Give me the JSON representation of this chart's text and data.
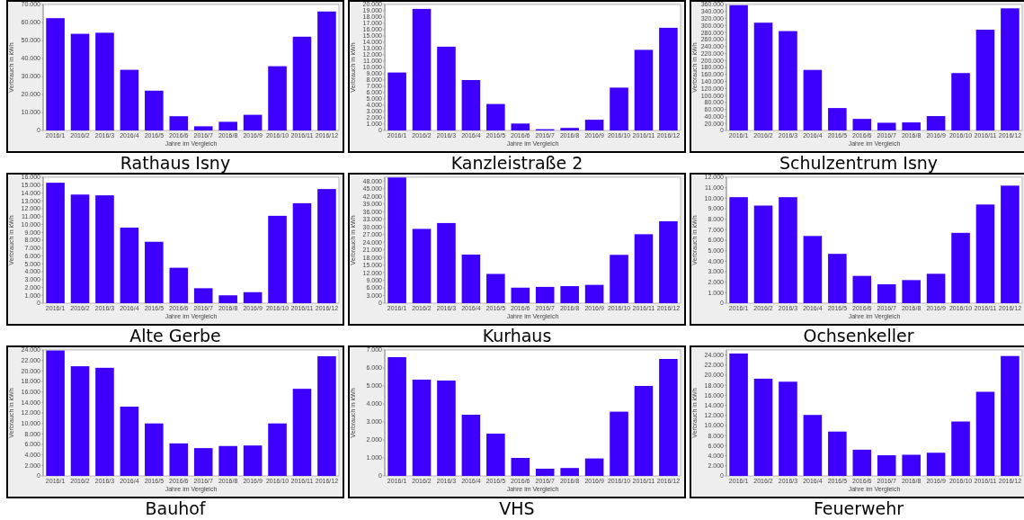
{
  "chart_data": [
    {
      "type": "bar",
      "title": "Rathaus Isny",
      "xlabel": "Jahre im Vergleich",
      "ylabel": "Verbrauch in kWh",
      "color": "#3d00ff",
      "categories": [
        "2016/1",
        "2016/2",
        "2016/3",
        "2016/4",
        "2016/5",
        "2016/6",
        "2016/7",
        "2016/8",
        "2016/9",
        "2016/10",
        "2016/11",
        "2016/12"
      ],
      "values": [
        62400,
        53700,
        54300,
        33700,
        22100,
        7900,
        2300,
        4800,
        8700,
        35700,
        52100,
        66100
      ],
      "ylim": [
        0,
        70000
      ],
      "yticks": [
        {
          "value": 0,
          "label": "0"
        },
        {
          "value": 10000,
          "label": "10.000"
        },
        {
          "value": 20000,
          "label": "20.000"
        },
        {
          "value": 30000,
          "label": "30.000"
        },
        {
          "value": 40000,
          "label": "40.000"
        },
        {
          "value": 50000,
          "label": "50.000"
        },
        {
          "value": 60000,
          "label": "60.000"
        },
        {
          "value": 70000,
          "label": "70.000"
        }
      ]
    },
    {
      "type": "bar",
      "title": "Kanzleistraße 2",
      "xlabel": "Jahre im Vergleich",
      "ylabel": "Verbrauch in kWh",
      "color": "#3d00ff",
      "categories": [
        "2016/1",
        "2016/2",
        "2016/3",
        "2016/4",
        "2016/5",
        "2016/6",
        "2016/7",
        "2016/8",
        "2016/9",
        "2016/10",
        "2016/11",
        "2016/12"
      ],
      "values": [
        9200,
        19300,
        13300,
        8000,
        4200,
        1100,
        200,
        400,
        1700,
        6800,
        12800,
        16300
      ],
      "ylim": [
        0,
        20000
      ],
      "yticks": [
        {
          "value": 0,
          "label": "0"
        },
        {
          "value": 1000,
          "label": "1.000"
        },
        {
          "value": 2000,
          "label": "2.000"
        },
        {
          "value": 3000,
          "label": "3.000"
        },
        {
          "value": 4000,
          "label": "4.000"
        },
        {
          "value": 5000,
          "label": "5.000"
        },
        {
          "value": 6000,
          "label": "6.000"
        },
        {
          "value": 7000,
          "label": "7.000"
        },
        {
          "value": 8000,
          "label": "8.000"
        },
        {
          "value": 9000,
          "label": "9.000"
        },
        {
          "value": 10000,
          "label": "10.000"
        },
        {
          "value": 11000,
          "label": "11.000"
        },
        {
          "value": 12000,
          "label": "12.000"
        },
        {
          "value": 13000,
          "label": "13.000"
        },
        {
          "value": 14000,
          "label": "14.000"
        },
        {
          "value": 15000,
          "label": "15.000"
        },
        {
          "value": 16000,
          "label": "16.000"
        },
        {
          "value": 17000,
          "label": "17.000"
        },
        {
          "value": 18000,
          "label": "18.000"
        },
        {
          "value": 19000,
          "label": "19.000"
        },
        {
          "value": 20000,
          "label": "20.000"
        }
      ]
    },
    {
      "type": "bar",
      "title": "Schulzentrum Isny",
      "xlabel": "Jahre im Vergleich",
      "ylabel": "Verbrauch in kWh",
      "color": "#3d00ff",
      "categories": [
        "2016/1",
        "2016/2",
        "2016/3",
        "2016/4",
        "2016/5",
        "2016/6",
        "2016/7",
        "2016/8",
        "2016/9",
        "2016/10",
        "2016/11",
        "2016/12"
      ],
      "values": [
        358000,
        308000,
        284000,
        173000,
        64000,
        33000,
        22000,
        23000,
        41000,
        164000,
        288000,
        349000
      ],
      "ylim": [
        0,
        360000
      ],
      "yticks": [
        {
          "value": 0,
          "label": "0"
        },
        {
          "value": 20000,
          "label": "20.000"
        },
        {
          "value": 40000,
          "label": "40.000"
        },
        {
          "value": 60000,
          "label": "60.000"
        },
        {
          "value": 80000,
          "label": "80.000"
        },
        {
          "value": 100000,
          "label": "100.000"
        },
        {
          "value": 120000,
          "label": "120.000"
        },
        {
          "value": 140000,
          "label": "140.000"
        },
        {
          "value": 160000,
          "label": "160.000"
        },
        {
          "value": 180000,
          "label": "180.000"
        },
        {
          "value": 200000,
          "label": "200.000"
        },
        {
          "value": 220000,
          "label": "220.000"
        },
        {
          "value": 240000,
          "label": "240.000"
        },
        {
          "value": 260000,
          "label": "260.000"
        },
        {
          "value": 280000,
          "label": "280.000"
        },
        {
          "value": 300000,
          "label": "300.000"
        },
        {
          "value": 320000,
          "label": "320.000"
        },
        {
          "value": 340000,
          "label": "340.000"
        },
        {
          "value": 360000,
          "label": "360.000"
        }
      ]
    },
    {
      "type": "bar",
      "title": "Alte Gerbe",
      "xlabel": "Jahre im Vergleich",
      "ylabel": "Verbrauch in kWh",
      "color": "#3d00ff",
      "categories": [
        "2016/1",
        "2016/2",
        "2016/3",
        "2016/4",
        "2016/5",
        "2016/6",
        "2016/7",
        "2016/8",
        "2016/9",
        "2016/10",
        "2016/11",
        "2016/12"
      ],
      "values": [
        15300,
        13800,
        13700,
        9600,
        7800,
        4500,
        1900,
        1000,
        1400,
        11100,
        12700,
        14500
      ],
      "ylim": [
        0,
        16000
      ],
      "yticks": [
        {
          "value": 0,
          "label": "0"
        },
        {
          "value": 1000,
          "label": "1.000"
        },
        {
          "value": 2000,
          "label": "2.000"
        },
        {
          "value": 3000,
          "label": "3.000"
        },
        {
          "value": 4000,
          "label": "4.000"
        },
        {
          "value": 5000,
          "label": "5.000"
        },
        {
          "value": 6000,
          "label": "6.000"
        },
        {
          "value": 7000,
          "label": "7.000"
        },
        {
          "value": 8000,
          "label": "8.000"
        },
        {
          "value": 9000,
          "label": "9.000"
        },
        {
          "value": 10000,
          "label": "10.000"
        },
        {
          "value": 11000,
          "label": "11.000"
        },
        {
          "value": 12000,
          "label": "12.000"
        },
        {
          "value": 13000,
          "label": "13.000"
        },
        {
          "value": 14000,
          "label": "14.000"
        },
        {
          "value": 15000,
          "label": "15.000"
        },
        {
          "value": 16000,
          "label": "16.000"
        }
      ]
    },
    {
      "type": "bar",
      "title": "Kurhaus",
      "xlabel": "Jahre im Vergleich",
      "ylabel": "Verbrauch in kWh",
      "color": "#3d00ff",
      "categories": [
        "2016/1",
        "2016/2",
        "2016/3",
        "2016/4",
        "2016/5",
        "2016/6",
        "2016/7",
        "2016/8",
        "2016/9",
        "2016/10",
        "2016/11",
        "2016/12"
      ],
      "values": [
        49400,
        29200,
        31500,
        19100,
        11500,
        6100,
        6400,
        6700,
        7200,
        19000,
        27100,
        32200
      ],
      "ylim": [
        0,
        49500
      ],
      "yticks": [
        {
          "value": 0,
          "label": "0"
        },
        {
          "value": 3000,
          "label": "3.000"
        },
        {
          "value": 6000,
          "label": "6.000"
        },
        {
          "value": 9000,
          "label": "9.000"
        },
        {
          "value": 12000,
          "label": "12.000"
        },
        {
          "value": 15000,
          "label": "15.000"
        },
        {
          "value": 18000,
          "label": "18.000"
        },
        {
          "value": 21000,
          "label": "21.000"
        },
        {
          "value": 24000,
          "label": "24.000"
        },
        {
          "value": 27000,
          "label": "27.000"
        },
        {
          "value": 30000,
          "label": "30.000"
        },
        {
          "value": 33000,
          "label": "33.000"
        },
        {
          "value": 36000,
          "label": "36.000"
        },
        {
          "value": 39000,
          "label": "39.000"
        },
        {
          "value": 42000,
          "label": "42.000"
        },
        {
          "value": 45000,
          "label": "45.000"
        },
        {
          "value": 48000,
          "label": "48.000"
        }
      ]
    },
    {
      "type": "bar",
      "title": "Ochsenkeller",
      "xlabel": "Jahre im Vergleich",
      "ylabel": "Verbrauch in kWh",
      "color": "#3d00ff",
      "categories": [
        "2016/1",
        "2016/2",
        "2016/3",
        "2016/4",
        "2016/5",
        "2016/6",
        "2016/7",
        "2016/8",
        "2016/9",
        "2016/10",
        "2016/11",
        "2016/12"
      ],
      "values": [
        10100,
        9300,
        10100,
        6400,
        4700,
        2600,
        1800,
        2200,
        2800,
        6700,
        9400,
        11200
      ],
      "ylim": [
        0,
        12000
      ],
      "yticks": [
        {
          "value": 0,
          "label": "0"
        },
        {
          "value": 1000,
          "label": "1.000"
        },
        {
          "value": 2000,
          "label": "2.000"
        },
        {
          "value": 3000,
          "label": "3.000"
        },
        {
          "value": 4000,
          "label": "4.000"
        },
        {
          "value": 5000,
          "label": "5.000"
        },
        {
          "value": 6000,
          "label": "6.000"
        },
        {
          "value": 7000,
          "label": "7.000"
        },
        {
          "value": 8000,
          "label": "8.000"
        },
        {
          "value": 9000,
          "label": "9.000"
        },
        {
          "value": 10000,
          "label": "10.000"
        },
        {
          "value": 11000,
          "label": "11.000"
        },
        {
          "value": 12000,
          "label": "12.000"
        }
      ]
    },
    {
      "type": "bar",
      "title": "Bauhof",
      "xlabel": "Jahre im Vergleich",
      "ylabel": "Verbrauch in kWh",
      "color": "#3d00ff",
      "categories": [
        "2016/1",
        "2016/2",
        "2016/3",
        "2016/4",
        "2016/5",
        "2016/6",
        "2016/7",
        "2016/8",
        "2016/9",
        "2016/10",
        "2016/11",
        "2016/12"
      ],
      "values": [
        23900,
        20900,
        20600,
        13200,
        10000,
        6200,
        5300,
        5700,
        5800,
        10000,
        16600,
        22800
      ],
      "ylim": [
        0,
        24000
      ],
      "yticks": [
        {
          "value": 0,
          "label": "0"
        },
        {
          "value": 2000,
          "label": "2.000"
        },
        {
          "value": 4000,
          "label": "4.000"
        },
        {
          "value": 6000,
          "label": "6.000"
        },
        {
          "value": 8000,
          "label": "8.000"
        },
        {
          "value": 10000,
          "label": "10.000"
        },
        {
          "value": 12000,
          "label": "12.000"
        },
        {
          "value": 14000,
          "label": "14.000"
        },
        {
          "value": 16000,
          "label": "16.000"
        },
        {
          "value": 18000,
          "label": "18.000"
        },
        {
          "value": 20000,
          "label": "20.000"
        },
        {
          "value": 22000,
          "label": "22.000"
        },
        {
          "value": 24000,
          "label": "24.000"
        }
      ]
    },
    {
      "type": "bar",
      "title": "VHS",
      "xlabel": "Jahre im Vergleich",
      "ylabel": "Verbrauch in kWh",
      "color": "#3d00ff",
      "categories": [
        "2016/1",
        "2016/2",
        "2016/3",
        "2016/4",
        "2016/5",
        "2016/6",
        "2016/7",
        "2016/8",
        "2016/9",
        "2016/10",
        "2016/11",
        "2016/12"
      ],
      "values": [
        6600,
        5350,
        5300,
        3400,
        2350,
        1000,
        400,
        440,
        970,
        3570,
        5000,
        6500
      ],
      "ylim": [
        0,
        7000
      ],
      "yticks": [
        {
          "value": 0,
          "label": "0"
        },
        {
          "value": 1000,
          "label": "1.000"
        },
        {
          "value": 2000,
          "label": "2.000"
        },
        {
          "value": 3000,
          "label": "3.000"
        },
        {
          "value": 4000,
          "label": "4.000"
        },
        {
          "value": 5000,
          "label": "5.000"
        },
        {
          "value": 6000,
          "label": "6.000"
        },
        {
          "value": 7000,
          "label": "7.000"
        }
      ]
    },
    {
      "type": "bar",
      "title": "Feuerwehr",
      "xlabel": "Jahre im Vergleich",
      "ylabel": "Verbrauch in kWh",
      "color": "#3d00ff",
      "categories": [
        "2016/1",
        "2016/2",
        "2016/3",
        "2016/4",
        "2016/5",
        "2016/6",
        "2016/7",
        "2016/8",
        "2016/9",
        "2016/10",
        "2016/11",
        "2016/12"
      ],
      "values": [
        24300,
        19300,
        18700,
        12100,
        8800,
        5200,
        4100,
        4200,
        4600,
        10800,
        16700,
        23800
      ],
      "ylim": [
        0,
        25000
      ],
      "yticks": [
        {
          "value": 0,
          "label": "0"
        },
        {
          "value": 2000,
          "label": "2.000"
        },
        {
          "value": 4000,
          "label": "4.000"
        },
        {
          "value": 6000,
          "label": "6.000"
        },
        {
          "value": 8000,
          "label": "8.000"
        },
        {
          "value": 10000,
          "label": "10.000"
        },
        {
          "value": 12000,
          "label": "12.000"
        },
        {
          "value": 14000,
          "label": "14.000"
        },
        {
          "value": 16000,
          "label": "16.000"
        },
        {
          "value": 18000,
          "label": "18.000"
        },
        {
          "value": 20000,
          "label": "20.000"
        },
        {
          "value": 22000,
          "label": "22.000"
        },
        {
          "value": 24000,
          "label": "24.000"
        }
      ]
    }
  ]
}
